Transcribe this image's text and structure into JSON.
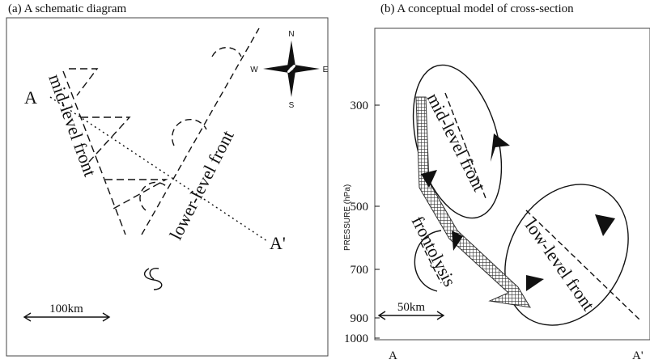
{
  "panel_a": {
    "title": "(a) A schematic diagram",
    "point_a": "A",
    "point_a_prime": "A'",
    "mid_front": "mid-level front",
    "low_front": "lower-level front",
    "compass": {
      "n": "N",
      "s": "S",
      "w": "W",
      "e": "E"
    },
    "scale": "100km"
  },
  "panel_b": {
    "title": "(b) A conceptual model of cross-section",
    "axis_label": "PRESSURE (hPa)",
    "ticks": [
      "300",
      "500",
      "700",
      "900",
      "1000"
    ],
    "mid_front": "mid-level front",
    "frontolysis": "frontolysis",
    "low_front": "low-level front",
    "scale": "50km",
    "point_a": "A",
    "point_a_prime": "A'"
  }
}
